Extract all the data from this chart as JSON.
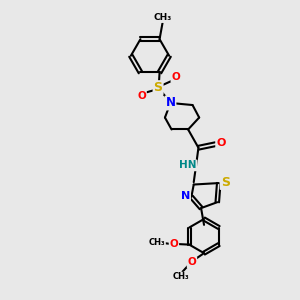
{
  "bg_color": "#e8e8e8",
  "bond_color": "#000000",
  "bond_width": 1.5,
  "atom_colors": {
    "N": "#0000ff",
    "O": "#ff0000",
    "S_sulfonyl": "#ccaa00",
    "S_thiazole": "#ccaa00",
    "H": "#008888"
  },
  "font_size": 8.0,
  "fig_size": [
    3.0,
    3.0
  ],
  "dpi": 100,
  "xlim": [
    0,
    10
  ],
  "ylim": [
    0,
    10
  ]
}
